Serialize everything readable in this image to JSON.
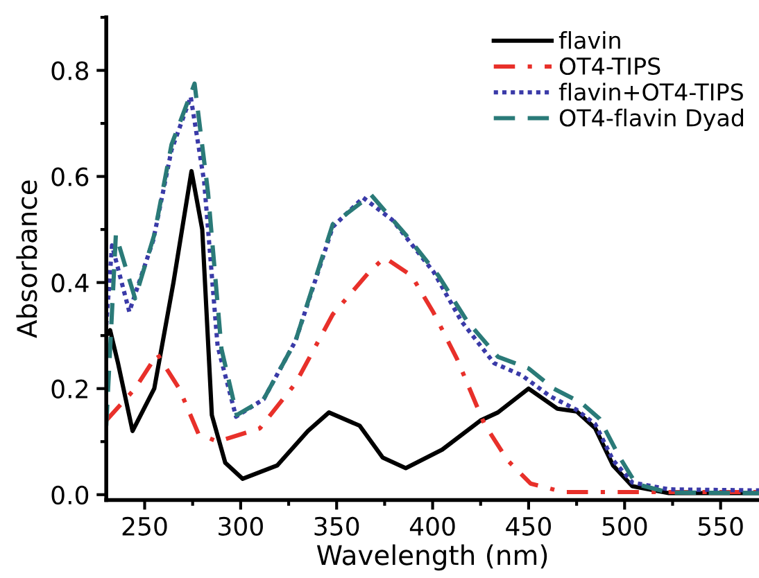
{
  "chart_data": {
    "type": "line",
    "xlabel": "Wavelength (nm)",
    "ylabel": "Absorbance",
    "xlim": [
      230,
      570
    ],
    "ylim": [
      -0.01,
      0.9
    ],
    "xticks": [
      250,
      300,
      350,
      400,
      450,
      500,
      550
    ],
    "yticks": [
      {
        "value": 0,
        "label": "0.0"
      },
      0.2,
      0.4,
      0.6,
      0.8
    ],
    "grid": false,
    "legend": "top right",
    "marker": "none",
    "series": [
      {
        "name": "flavin",
        "color": "#000000",
        "line_style": "solid",
        "x": [
          230,
          232,
          236,
          243.7,
          255,
          265,
          274.4,
          280,
          285,
          292,
          301,
          319,
          335,
          346,
          362,
          374,
          386,
          405,
          425,
          434,
          450,
          465,
          475,
          484.7,
          494,
          504,
          523,
          570
        ],
        "values": [
          0.3,
          0.31,
          0.25,
          0.12,
          0.2,
          0.4,
          0.61,
          0.5,
          0.15,
          0.06,
          0.03,
          0.055,
          0.12,
          0.155,
          0.13,
          0.07,
          0.05,
          0.085,
          0.14,
          0.155,
          0.2,
          0.162,
          0.157,
          0.125,
          0.055,
          0.016,
          0.003,
          0.003
        ]
      },
      {
        "name": "OT4-TIPS",
        "color": "#e8302a",
        "line_style": "dashdot",
        "x": [
          230,
          245,
          256.6,
          268,
          278,
          288,
          310,
          328.6,
          348,
          367,
          375,
          389,
          400.5,
          412.7,
          427,
          439,
          451,
          468,
          570
        ],
        "values": [
          0.14,
          0.2,
          0.265,
          0.2,
          0.115,
          0.1,
          0.125,
          0.21,
          0.34,
          0.42,
          0.447,
          0.413,
          0.343,
          0.256,
          0.133,
          0.065,
          0.021,
          0.005,
          0.005
        ]
      },
      {
        "name": "flavin+OT4-TIPS",
        "color": "#3a3aa8",
        "line_style": "dotted",
        "x": [
          230,
          233,
          242,
          254.5,
          264,
          274,
          281,
          288,
          297.6,
          312,
          328.6,
          348,
          363.8,
          379,
          400.5,
          415,
          432,
          446.5,
          461,
          475,
          484.7,
          494,
          504,
          523,
          570
        ],
        "values": [
          0.32,
          0.47,
          0.345,
          0.48,
          0.65,
          0.75,
          0.59,
          0.28,
          0.147,
          0.18,
          0.29,
          0.505,
          0.56,
          0.518,
          0.42,
          0.327,
          0.248,
          0.225,
          0.186,
          0.16,
          0.133,
          0.065,
          0.023,
          0.01,
          0.008
        ]
      },
      {
        "name": "OT4-flavin Dyad",
        "color": "#2a7a78",
        "line_style": "dashed",
        "x": [
          230,
          235,
          245,
          255,
          264,
          276,
          283,
          290,
          298,
          312,
          328.6,
          348,
          368,
          386,
          403,
          418,
          434,
          450,
          463,
          477.5,
          487,
          497,
          506,
          523,
          570
        ],
        "values": [
          0.13,
          0.49,
          0.37,
          0.49,
          0.66,
          0.775,
          0.57,
          0.275,
          0.15,
          0.18,
          0.29,
          0.51,
          0.565,
          0.49,
          0.413,
          0.327,
          0.26,
          0.238,
          0.2,
          0.173,
          0.143,
          0.073,
          0.02,
          0.004,
          0.003
        ]
      }
    ]
  }
}
